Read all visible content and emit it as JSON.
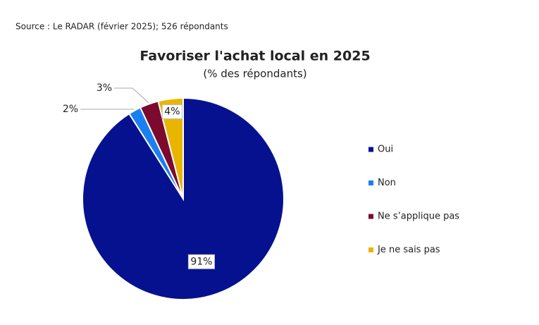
{
  "chart_data": {
    "type": "pie",
    "source": "Source : Le RADAR (février 2025); 526 répondants",
    "title": "Favoriser l'achat local en 2025",
    "subtitle": "(% des répondants)",
    "categories": [
      "Oui",
      "Non",
      "Ne s’applique pas",
      "Je ne sais pas"
    ],
    "values": [
      91,
      2,
      3,
      4
    ],
    "value_labels": [
      "91%",
      "2%",
      "3%",
      "4%"
    ],
    "colors": [
      "#06118f",
      "#1a7ff0",
      "#7c0a2e",
      "#e8b600"
    ],
    "legend": "right"
  }
}
